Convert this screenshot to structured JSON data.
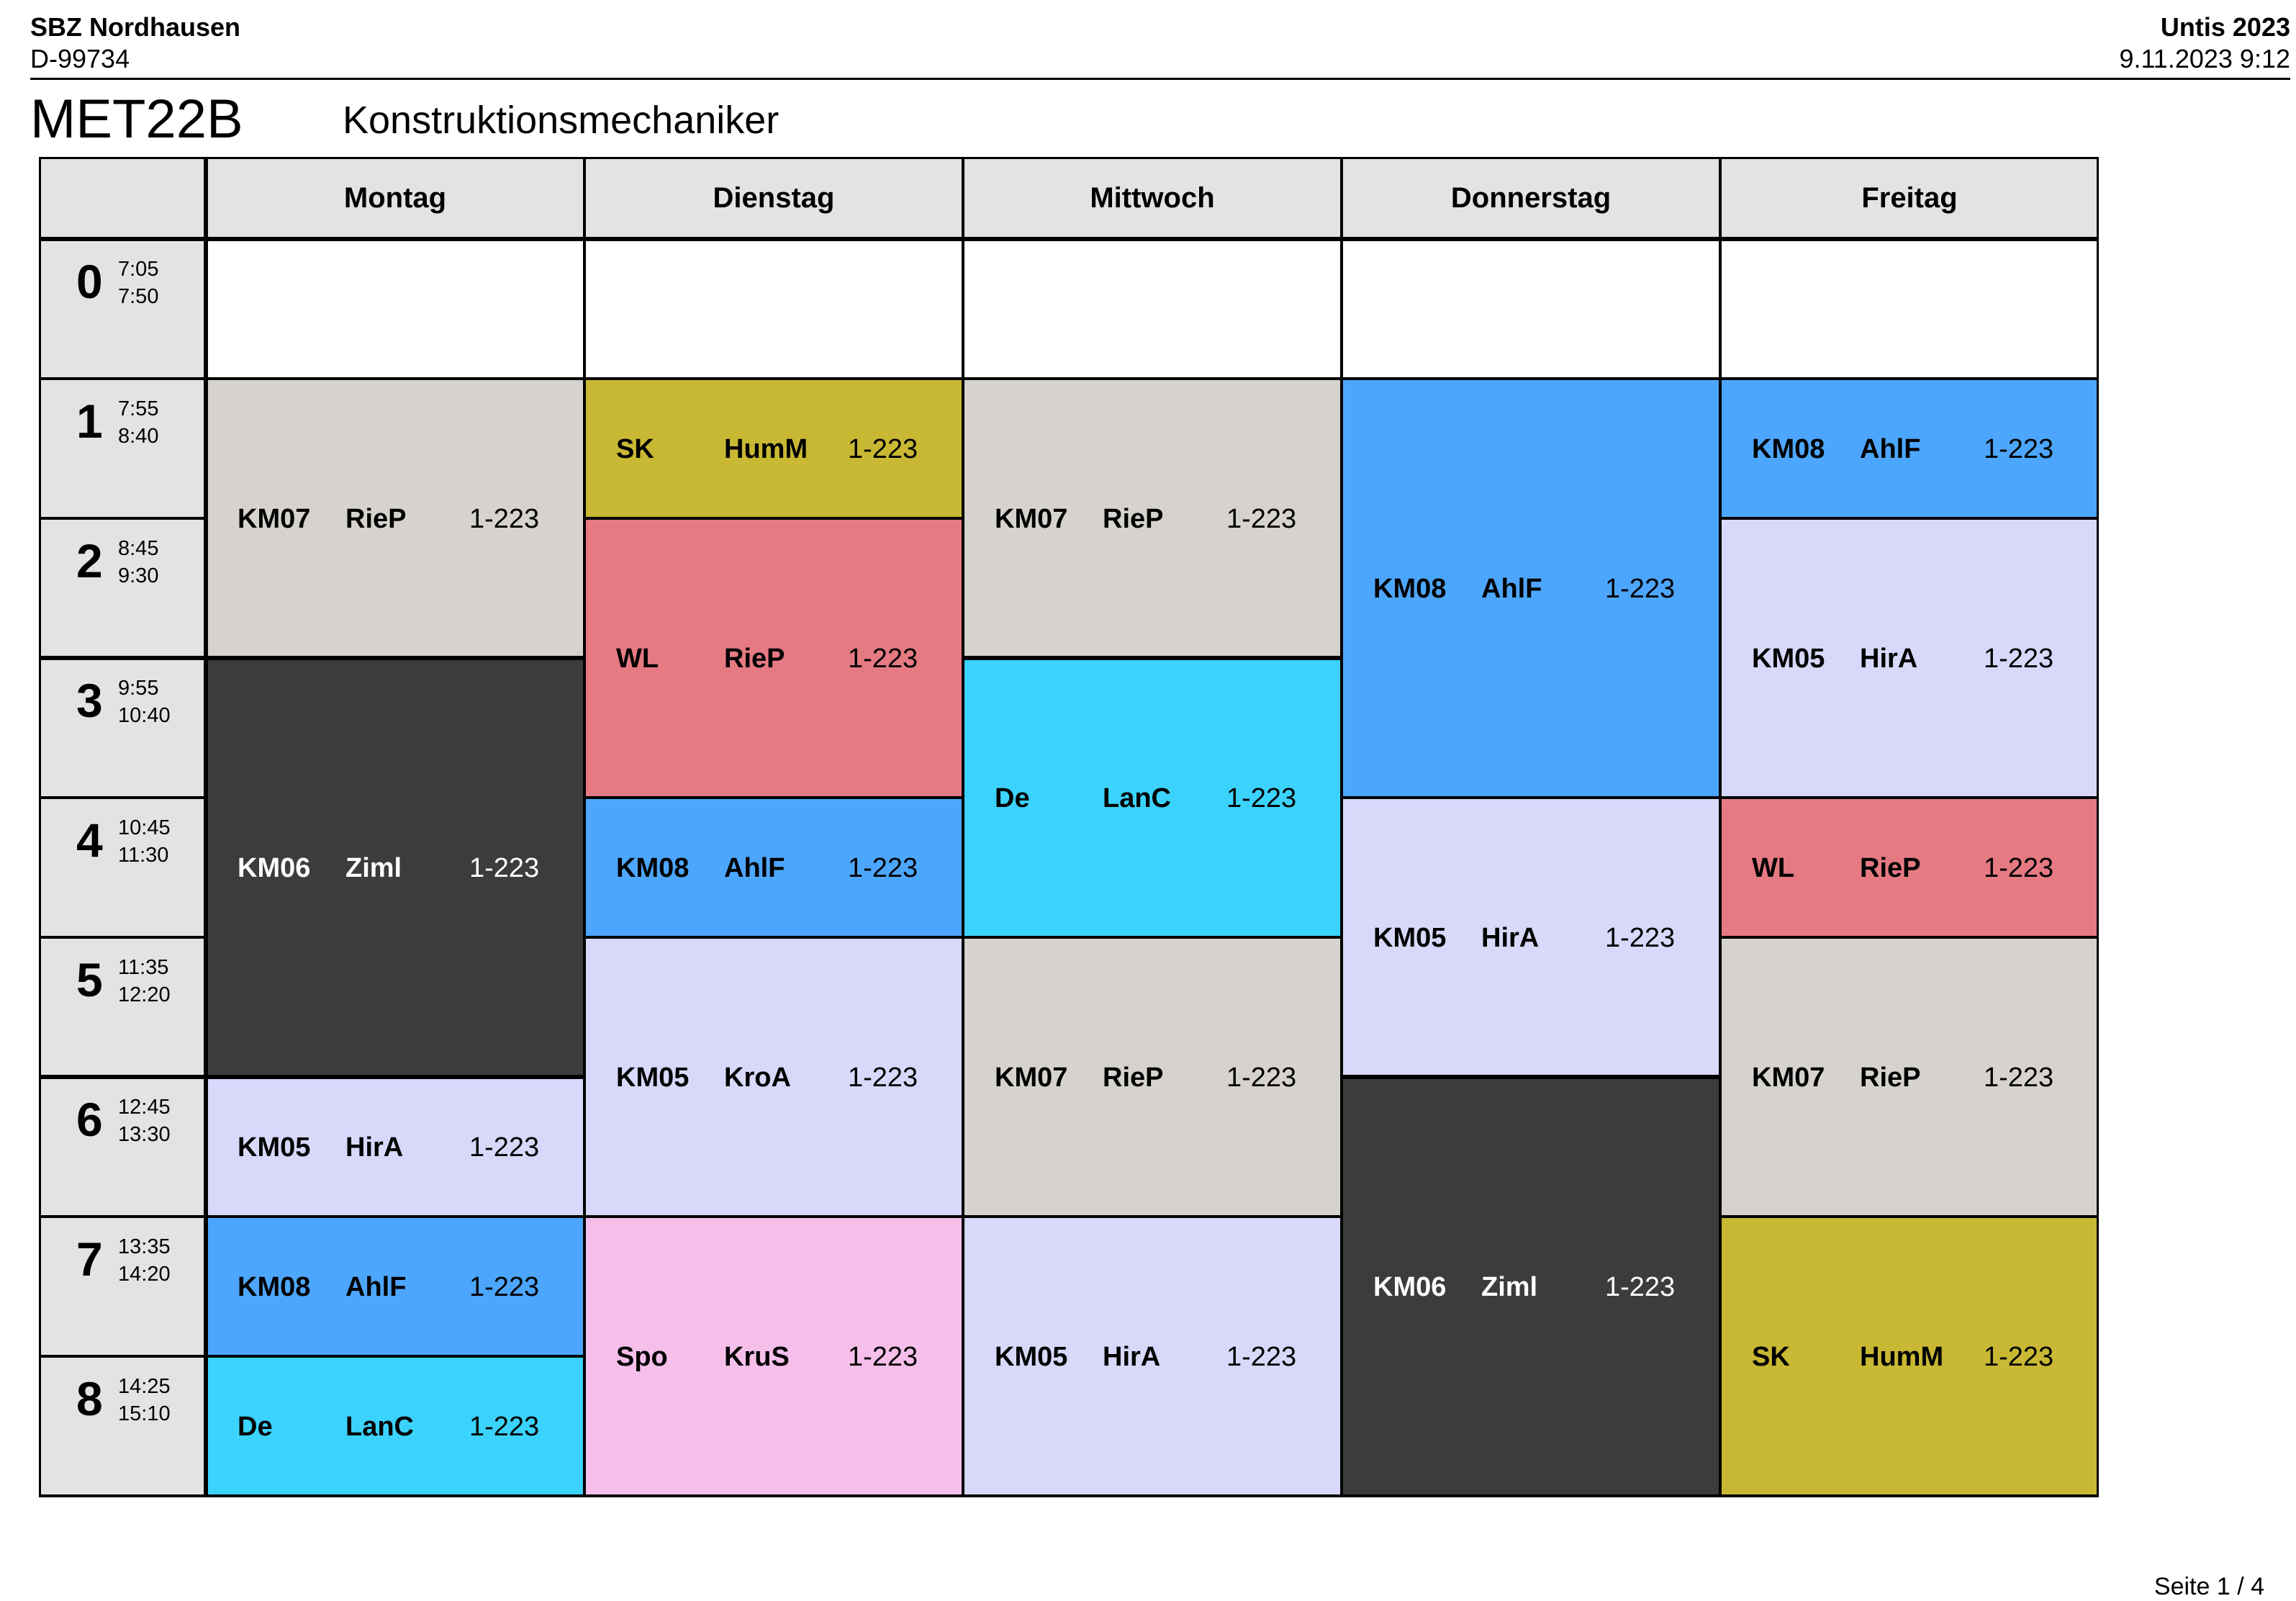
{
  "header": {
    "school": "SBZ Nordhausen",
    "zip": "D-99734",
    "product": "Untis 2023",
    "print_date": "9.11.2023  9:12"
  },
  "title": {
    "class_code": "MET22B",
    "class_name": "Konstruktionsmechaniker"
  },
  "days": [
    "Montag",
    "Dienstag",
    "Mittwoch",
    "Donnerstag",
    "Freitag"
  ],
  "periods": [
    {
      "num": "0",
      "start": "7:05",
      "end": "7:50"
    },
    {
      "num": "1",
      "start": "7:55",
      "end": "8:40"
    },
    {
      "num": "2",
      "start": "8:45",
      "end": "9:30"
    },
    {
      "num": "3",
      "start": "9:55",
      "end": "10:40"
    },
    {
      "num": "4",
      "start": "10:45",
      "end": "11:30"
    },
    {
      "num": "5",
      "start": "11:35",
      "end": "12:20"
    },
    {
      "num": "6",
      "start": "12:45",
      "end": "13:30"
    },
    {
      "num": "7",
      "start": "13:35",
      "end": "14:20"
    },
    {
      "num": "8",
      "start": "14:25",
      "end": "15:10"
    }
  ],
  "lessons": [
    {
      "day": 0,
      "start": 1,
      "span": 2,
      "subject": "KM07",
      "teacher": "RieP",
      "room": "1-223",
      "color": "#d6d3cf",
      "text_color": "#000000"
    },
    {
      "day": 0,
      "start": 3,
      "span": 3,
      "subject": "KM06",
      "teacher": "Ziml",
      "room": "1-223",
      "color": "#3c3c3c",
      "text_color": "#ffffff"
    },
    {
      "day": 0,
      "start": 6,
      "span": 1,
      "subject": "KM05",
      "teacher": "HirA",
      "room": "1-223",
      "color": "#d8d8fb",
      "text_color": "#000000"
    },
    {
      "day": 0,
      "start": 7,
      "span": 1,
      "subject": "KM08",
      "teacher": "AhlF",
      "room": "1-223",
      "color": "#4da6fd",
      "text_color": "#000000"
    },
    {
      "day": 0,
      "start": 8,
      "span": 1,
      "subject": "De",
      "teacher": "LanC",
      "room": "1-223",
      "color": "#3bd3fd",
      "text_color": "#000000"
    },
    {
      "day": 1,
      "start": 1,
      "span": 1,
      "subject": "SK",
      "teacher": "HumM",
      "room": "1-223",
      "color": "#c8b833",
      "text_color": "#000000"
    },
    {
      "day": 1,
      "start": 2,
      "span": 2,
      "subject": "WL",
      "teacher": "RieP",
      "room": "1-223",
      "color": "#e57a83",
      "text_color": "#000000"
    },
    {
      "day": 1,
      "start": 4,
      "span": 1,
      "subject": "KM08",
      "teacher": "AhlF",
      "room": "1-223",
      "color": "#4da6fd",
      "text_color": "#000000"
    },
    {
      "day": 1,
      "start": 5,
      "span": 2,
      "subject": "KM05",
      "teacher": "KroA",
      "room": "1-223",
      "color": "#d8d8fb",
      "text_color": "#000000"
    },
    {
      "day": 1,
      "start": 7,
      "span": 2,
      "subject": "Spo",
      "teacher": "KruS",
      "room": "1-223",
      "color": "#f6bfea",
      "text_color": "#000000"
    },
    {
      "day": 2,
      "start": 1,
      "span": 2,
      "subject": "KM07",
      "teacher": "RieP",
      "room": "1-223",
      "color": "#d6d3cf",
      "text_color": "#000000"
    },
    {
      "day": 2,
      "start": 3,
      "span": 2,
      "subject": "De",
      "teacher": "LanC",
      "room": "1-223",
      "color": "#3bd3fd",
      "text_color": "#000000"
    },
    {
      "day": 2,
      "start": 5,
      "span": 2,
      "subject": "KM07",
      "teacher": "RieP",
      "room": "1-223",
      "color": "#d6d3cf",
      "text_color": "#000000"
    },
    {
      "day": 2,
      "start": 7,
      "span": 2,
      "subject": "KM05",
      "teacher": "HirA",
      "room": "1-223",
      "color": "#d8d8fb",
      "text_color": "#000000"
    },
    {
      "day": 3,
      "start": 1,
      "span": 3,
      "subject": "KM08",
      "teacher": "AhlF",
      "room": "1-223",
      "color": "#4da6fd",
      "text_color": "#000000"
    },
    {
      "day": 3,
      "start": 4,
      "span": 2,
      "subject": "KM05",
      "teacher": "HirA",
      "room": "1-223",
      "color": "#d8d8fb",
      "text_color": "#000000"
    },
    {
      "day": 3,
      "start": 6,
      "span": 3,
      "subject": "KM06",
      "teacher": "Ziml",
      "room": "1-223",
      "color": "#3c3c3c",
      "text_color": "#ffffff"
    },
    {
      "day": 4,
      "start": 1,
      "span": 1,
      "subject": "KM08",
      "teacher": "AhlF",
      "room": "1-223",
      "color": "#4da6fd",
      "text_color": "#000000"
    },
    {
      "day": 4,
      "start": 2,
      "span": 2,
      "subject": "KM05",
      "teacher": "HirA",
      "room": "1-223",
      "color": "#d8d8fb",
      "text_color": "#000000"
    },
    {
      "day": 4,
      "start": 4,
      "span": 1,
      "subject": "WL",
      "teacher": "RieP",
      "room": "1-223",
      "color": "#e57a83",
      "text_color": "#000000"
    },
    {
      "day": 4,
      "start": 5,
      "span": 2,
      "subject": "KM07",
      "teacher": "RieP",
      "room": "1-223",
      "color": "#d6d3cf",
      "text_color": "#000000"
    },
    {
      "day": 4,
      "start": 7,
      "span": 2,
      "subject": "SK",
      "teacher": "HumM",
      "room": "1-223",
      "color": "#c8b833",
      "text_color": "#000000"
    }
  ],
  "footer": {
    "page": "Seite 1 / 4"
  }
}
